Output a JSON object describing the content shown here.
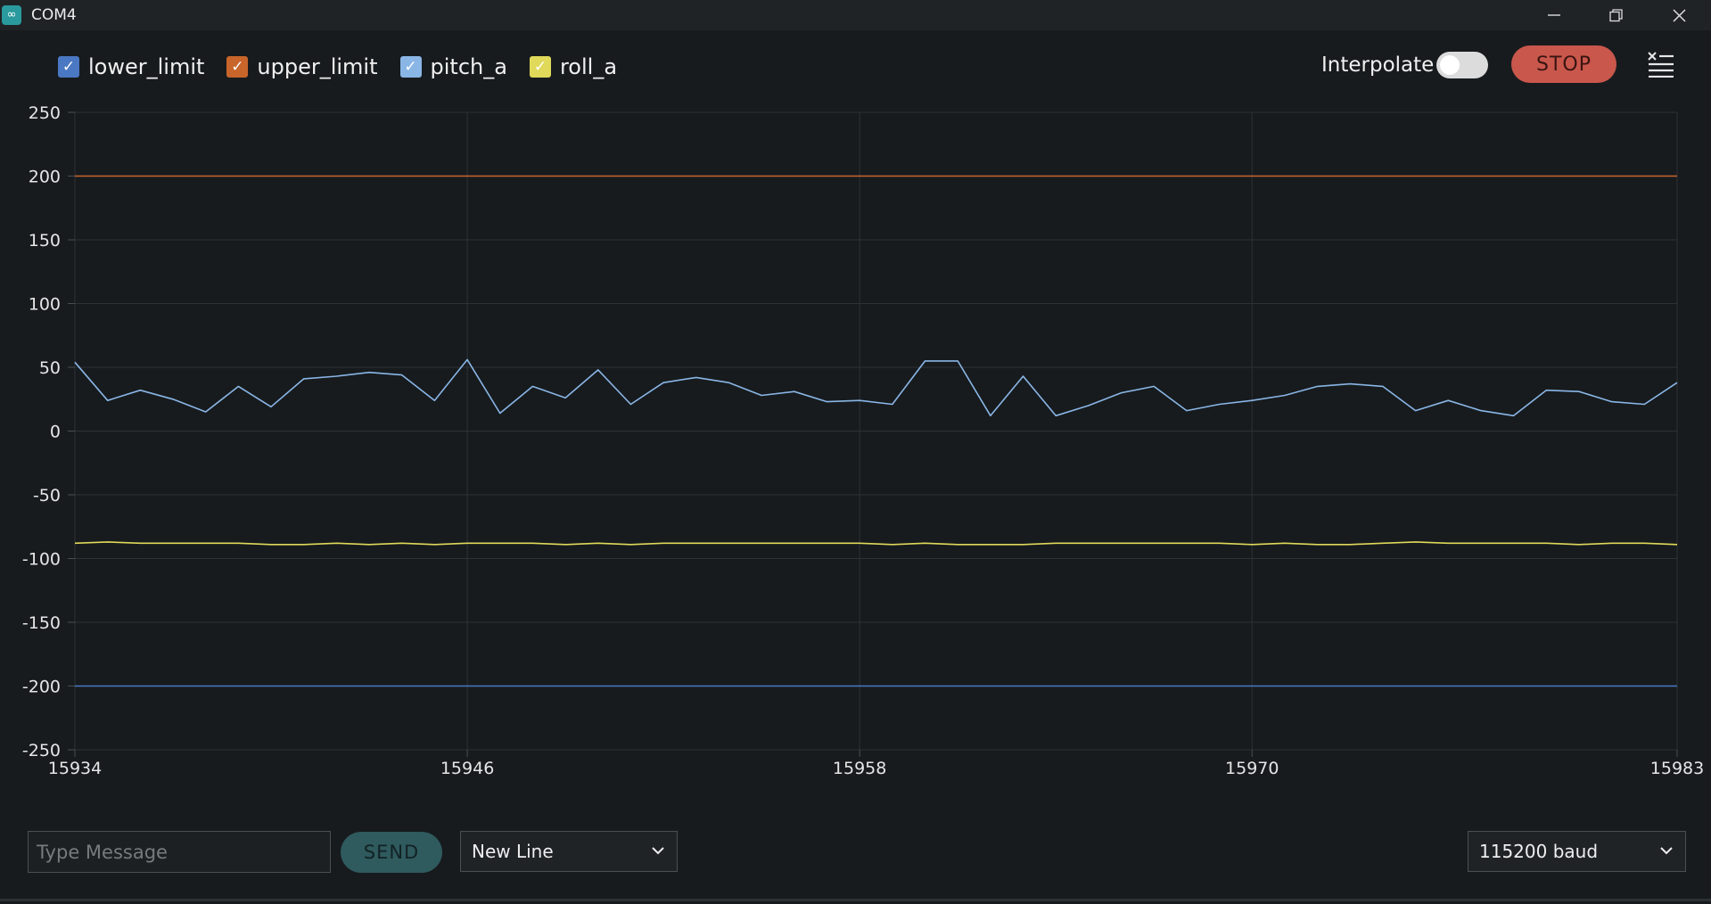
{
  "window": {
    "title": "COM4",
    "app_icon": "arduino-infinity-icon",
    "controls": [
      "minimize-icon",
      "restore-icon",
      "close-icon"
    ]
  },
  "toolbar": {
    "legend": [
      {
        "label": "lower_limit",
        "checked": true,
        "color": "#4a78c2"
      },
      {
        "label": "upper_limit",
        "checked": true,
        "color": "#c8652a"
      },
      {
        "label": "pitch_a",
        "checked": true,
        "color": "#8ab6e6"
      },
      {
        "label": "roll_a",
        "checked": true,
        "color": "#e0d95a"
      }
    ],
    "interpolate_label": "Interpolate",
    "interpolate_on": false,
    "stop_label": "STOP",
    "clear_icon": "clear-output-icon"
  },
  "chart_data": {
    "type": "line",
    "x_ticks": [
      "15934",
      "15946",
      "15958",
      "15970",
      "15983"
    ],
    "x_range": [
      15934,
      15983
    ],
    "y_ticks": [
      "250",
      "200",
      "150",
      "100",
      "50",
      "0",
      "-50",
      "-100",
      "-150",
      "-200",
      "-250"
    ],
    "y_range": [
      -250,
      250
    ],
    "grid": true,
    "series": [
      {
        "name": "lower_limit",
        "color": "#4a78c2",
        "constant": -200
      },
      {
        "name": "upper_limit",
        "color": "#c8652a",
        "constant": 200
      },
      {
        "name": "pitch_a",
        "color": "#8ab6e6",
        "values": [
          54,
          24,
          32,
          25,
          15,
          35,
          19,
          41,
          43,
          46,
          44,
          24,
          56,
          14,
          35,
          26,
          48,
          21,
          38,
          42,
          38,
          28,
          31,
          23,
          24,
          21,
          55,
          55,
          12,
          43,
          12,
          20,
          30,
          35,
          16,
          21,
          24,
          28,
          35,
          37,
          35,
          16,
          24,
          16,
          12,
          32,
          31,
          23,
          21,
          38
        ]
      },
      {
        "name": "roll_a",
        "color": "#e0d95a",
        "values": [
          -88,
          -87,
          -88,
          -88,
          -88,
          -88,
          -89,
          -89,
          -88,
          -89,
          -88,
          -89,
          -88,
          -88,
          -88,
          -89,
          -88,
          -89,
          -88,
          -88,
          -88,
          -88,
          -88,
          -88,
          -88,
          -89,
          -88,
          -89,
          -89,
          -89,
          -88,
          -88,
          -88,
          -88,
          -88,
          -88,
          -89,
          -88,
          -89,
          -89,
          -88,
          -87,
          -88,
          -88,
          -88,
          -88,
          -89,
          -88,
          -88,
          -89
        ]
      }
    ]
  },
  "footer": {
    "message_placeholder": "Type Message",
    "message_value": "",
    "send_label": "SEND",
    "line_ending": "New Line",
    "baud_rate": "115200 baud"
  }
}
